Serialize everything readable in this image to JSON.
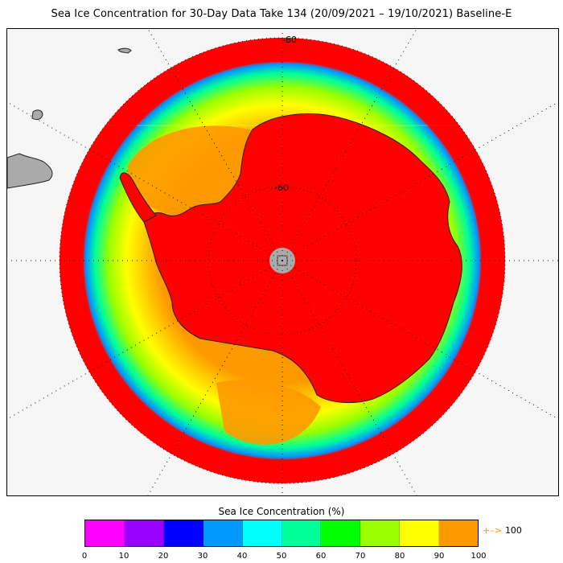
{
  "title": "Sea Ice Concentration for 30-Day Data Take 134 (20/09/2021 – 19/10/2021) Baseline-E",
  "map": {
    "projection": "south-polar-stereographic",
    "lat_labels": [
      "-60",
      "-60"
    ],
    "pole_hole_color": "#aaaaaa",
    "land_color": "#ff0000",
    "outside_land_color": "#aaaaaa"
  },
  "legend": {
    "title": "Sea Ice Concentration (%)",
    "colors": [
      "#ff00ff",
      "#9900ff",
      "#0000ff",
      "#0099ff",
      "#00ffff",
      "#00ff99",
      "#00ff00",
      "#99ff00",
      "#ffff00",
      "#ff9900"
    ],
    "ticks": [
      "0",
      "10",
      "20",
      "30",
      "40",
      "50",
      "60",
      "70",
      "80",
      "90",
      "100"
    ],
    "arrow_glyph": "+–>",
    "arrow_label": "100",
    "arrow_color": "#f59a00"
  }
}
